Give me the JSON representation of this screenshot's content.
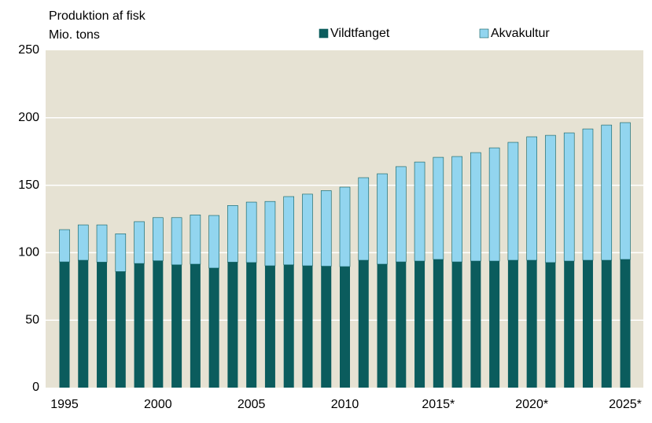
{
  "chart_data": {
    "type": "stacked_bar",
    "title": "Produktion af fisk",
    "y_label": "Mio. tons",
    "categories": [
      "1995",
      null,
      null,
      null,
      null,
      "2000",
      null,
      null,
      null,
      null,
      "2005",
      null,
      null,
      null,
      null,
      "2010",
      null,
      null,
      null,
      null,
      "2015*",
      null,
      null,
      null,
      null,
      "2020*",
      null,
      null,
      null,
      null,
      "2025*"
    ],
    "series": [
      {
        "name": "Vildtfanget",
        "color": "#0b5c5d",
        "values": [
          93.2,
          94.4,
          93,
          86,
          92,
          94,
          91,
          91.5,
          88.6,
          93,
          92.7,
          90.3,
          91,
          90.3,
          90,
          89.7,
          94.4,
          91.5,
          93.2,
          93.8,
          95,
          93.2,
          93.8,
          93.8,
          94.4,
          94.4,
          92.7,
          93.8,
          94.4,
          94.4,
          95
        ]
      },
      {
        "name": "Akvakultur",
        "color": "#92d5ef",
        "values": [
          23.9,
          26.2,
          27.6,
          28,
          31,
          32,
          35,
          36.5,
          39,
          42,
          44.8,
          47.7,
          50.6,
          53.1,
          56,
          58.9,
          61.2,
          67,
          70.6,
          73.4,
          75.7,
          78.1,
          80.4,
          83.9,
          87.4,
          91.5,
          94.3,
          95,
          97.3,
          100.2,
          101.4
        ]
      }
    ],
    "ylim": [
      0,
      250
    ],
    "yticks": [
      0,
      50,
      100,
      150,
      200,
      250
    ],
    "grid": true,
    "legend": "top"
  }
}
